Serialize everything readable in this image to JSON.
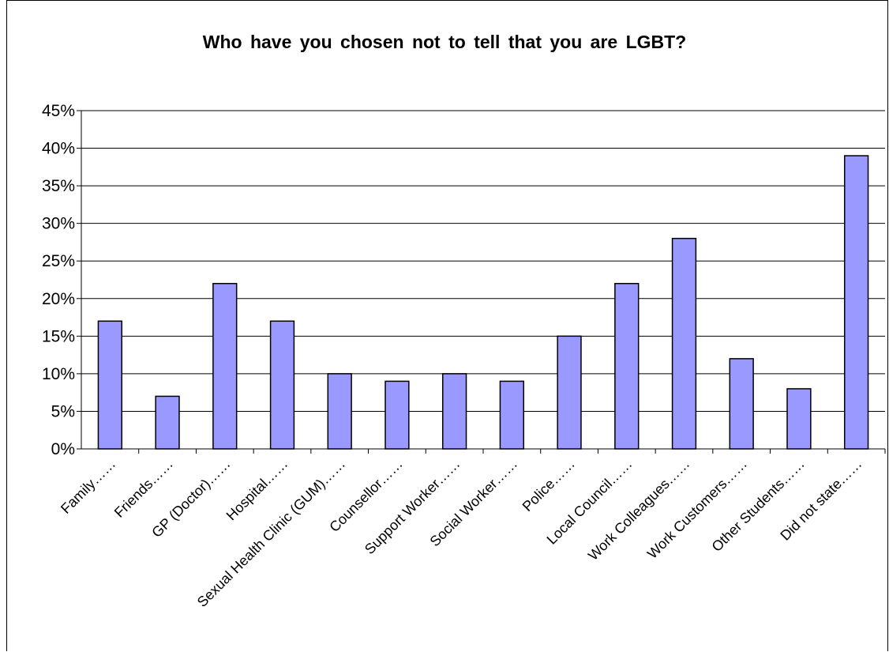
{
  "chart_data": {
    "type": "bar",
    "title": "Who have you chosen not to tell that you are LGBT?",
    "xlabel": "",
    "ylabel": "",
    "ylim": [
      0,
      45
    ],
    "y_unit": "%",
    "y_ticks": [
      "0%",
      "5%",
      "10%",
      "15%",
      "20%",
      "25%",
      "30%",
      "35%",
      "40%",
      "45%"
    ],
    "grid": true,
    "legend": "none",
    "bar_color": "#9999ff",
    "categories": [
      "Family……",
      "Friends……",
      "GP (Doctor)……",
      "Hospital……",
      "Sexual Health Clinic (GUM)……",
      "Counsellor……",
      "Support Worker……",
      "Social Worker……",
      "Police……",
      "Local Council……",
      "Work Colleagues……",
      "Work Customers……",
      "Other Students……",
      "Did not state……"
    ],
    "values": [
      17,
      7,
      22,
      17,
      10,
      9,
      10,
      9,
      15,
      22,
      28,
      12,
      8,
      39
    ]
  }
}
